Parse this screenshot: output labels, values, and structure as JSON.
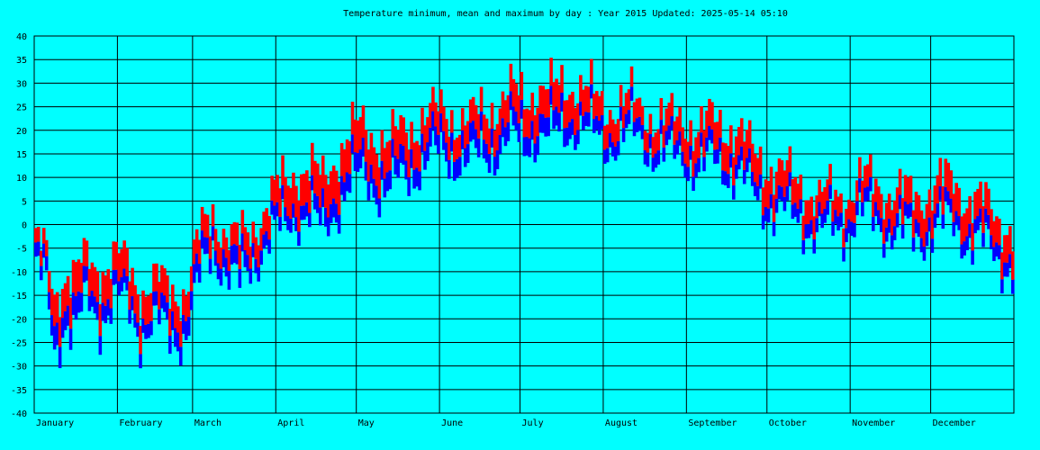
{
  "chart_data": {
    "type": "bar",
    "title": "Temperature minimum, mean and maximum by day : Year 2015   Updated: 2025-05-14 05:10",
    "xlabel": "",
    "ylabel": "",
    "ylim": [
      -40,
      40
    ],
    "yticks": [
      40,
      35,
      30,
      25,
      20,
      15,
      10,
      5,
      0,
      -5,
      -10,
      -15,
      -20,
      -25,
      -30,
      -35,
      -40
    ],
    "months": [
      "January",
      "February",
      "March",
      "April",
      "May",
      "June",
      "July",
      "August",
      "September",
      "October",
      "November",
      "December"
    ],
    "month_days": [
      31,
      28,
      31,
      30,
      31,
      30,
      31,
      31,
      30,
      31,
      30,
      31
    ],
    "grid": true,
    "colors": {
      "background": "#00FFFF",
      "grid": "#000000",
      "min_to_mean": "#0000FF",
      "mean_to_max": "#FF0000"
    },
    "series": [
      {
        "name": "minimum",
        "anchors": [
          [
            1,
            -9
          ],
          [
            5,
            -14
          ],
          [
            8,
            -27
          ],
          [
            12,
            -20
          ],
          [
            16,
            -23
          ],
          [
            20,
            -16
          ],
          [
            25,
            -20
          ],
          [
            31,
            -16
          ],
          [
            36,
            -18
          ],
          [
            40,
            -23
          ],
          [
            46,
            -21
          ],
          [
            52,
            -24
          ],
          [
            57,
            -23
          ],
          [
            62,
            -12
          ],
          [
            67,
            -5
          ],
          [
            72,
            -10
          ],
          [
            77,
            -13
          ],
          [
            82,
            -8
          ],
          [
            88,
            -3
          ],
          [
            93,
            -1
          ],
          [
            98,
            2
          ],
          [
            103,
            2
          ],
          [
            108,
            -2
          ],
          [
            113,
            4
          ],
          [
            118,
            8
          ],
          [
            123,
            10
          ],
          [
            128,
            8
          ],
          [
            133,
            7
          ],
          [
            138,
            10
          ],
          [
            143,
            12
          ],
          [
            148,
            14
          ],
          [
            153,
            15
          ],
          [
            158,
            14
          ],
          [
            163,
            13
          ],
          [
            168,
            15
          ],
          [
            173,
            16
          ],
          [
            178,
            18
          ],
          [
            183,
            17
          ],
          [
            188,
            19
          ],
          [
            193,
            18
          ],
          [
            198,
            20
          ],
          [
            203,
            21
          ],
          [
            208,
            19
          ],
          [
            213,
            17
          ],
          [
            218,
            18
          ],
          [
            223,
            19
          ],
          [
            228,
            17
          ],
          [
            233,
            15
          ],
          [
            238,
            14
          ],
          [
            243,
            14
          ],
          [
            248,
            12
          ],
          [
            253,
            13
          ],
          [
            258,
            12
          ],
          [
            263,
            11
          ],
          [
            268,
            6
          ],
          [
            273,
            4
          ],
          [
            278,
            3
          ],
          [
            283,
            1
          ],
          [
            288,
            0
          ],
          [
            293,
            -2
          ],
          [
            298,
            -1
          ],
          [
            303,
            -1
          ],
          [
            308,
            2
          ],
          [
            313,
            1
          ],
          [
            318,
            -1
          ],
          [
            323,
            -2
          ],
          [
            328,
            -3
          ],
          [
            333,
            -2
          ],
          [
            338,
            0
          ],
          [
            343,
            0
          ],
          [
            348,
            -3
          ],
          [
            353,
            -4
          ],
          [
            358,
            -6
          ],
          [
            365,
            -10
          ]
        ]
      },
      {
        "name": "mean",
        "anchors": [
          [
            1,
            -6
          ],
          [
            5,
            -11
          ],
          [
            8,
            -22
          ],
          [
            12,
            -16
          ],
          [
            16,
            -18
          ],
          [
            20,
            -13
          ],
          [
            25,
            -16
          ],
          [
            31,
            -13
          ],
          [
            36,
            -15
          ],
          [
            40,
            -20
          ],
          [
            46,
            -18
          ],
          [
            52,
            -20
          ],
          [
            57,
            -19
          ],
          [
            62,
            -8
          ],
          [
            67,
            -2
          ],
          [
            72,
            -6
          ],
          [
            77,
            -9
          ],
          [
            82,
            -5
          ],
          [
            88,
            0
          ],
          [
            93,
            2
          ],
          [
            98,
            5
          ],
          [
            103,
            5
          ],
          [
            108,
            2
          ],
          [
            113,
            8
          ],
          [
            118,
            12
          ],
          [
            123,
            14
          ],
          [
            128,
            12
          ],
          [
            133,
            11
          ],
          [
            138,
            14
          ],
          [
            143,
            16
          ],
          [
            148,
            18
          ],
          [
            153,
            19
          ],
          [
            158,
            18
          ],
          [
            163,
            17
          ],
          [
            168,
            19
          ],
          [
            173,
            20
          ],
          [
            178,
            22
          ],
          [
            183,
            21
          ],
          [
            188,
            23
          ],
          [
            193,
            22
          ],
          [
            198,
            24
          ],
          [
            203,
            24
          ],
          [
            208,
            22
          ],
          [
            213,
            20
          ],
          [
            218,
            21
          ],
          [
            223,
            22
          ],
          [
            228,
            20
          ],
          [
            233,
            18
          ],
          [
            238,
            17
          ],
          [
            243,
            17
          ],
          [
            248,
            15
          ],
          [
            253,
            16
          ],
          [
            258,
            15
          ],
          [
            263,
            14
          ],
          [
            268,
            9
          ],
          [
            273,
            7
          ],
          [
            278,
            6
          ],
          [
            283,
            4
          ],
          [
            288,
            3
          ],
          [
            293,
            1
          ],
          [
            298,
            2
          ],
          [
            303,
            2
          ],
          [
            308,
            5
          ],
          [
            313,
            4
          ],
          [
            318,
            2
          ],
          [
            323,
            1
          ],
          [
            328,
            0
          ],
          [
            333,
            1
          ],
          [
            338,
            3
          ],
          [
            343,
            3
          ],
          [
            348,
            0
          ],
          [
            353,
            -1
          ],
          [
            358,
            -3
          ],
          [
            365,
            -7
          ]
        ]
      },
      {
        "name": "maximum",
        "anchors": [
          [
            1,
            -3
          ],
          [
            5,
            -8
          ],
          [
            8,
            -16
          ],
          [
            12,
            -11
          ],
          [
            16,
            -12
          ],
          [
            20,
            -9
          ],
          [
            25,
            -11
          ],
          [
            31,
            -9
          ],
          [
            36,
            -11
          ],
          [
            40,
            -16
          ],
          [
            46,
            -14
          ],
          [
            52,
            -16
          ],
          [
            57,
            -15
          ],
          [
            62,
            -4
          ],
          [
            67,
            2
          ],
          [
            72,
            -2
          ],
          [
            77,
            -4
          ],
          [
            82,
            -1
          ],
          [
            88,
            4
          ],
          [
            93,
            7
          ],
          [
            98,
            10
          ],
          [
            103,
            10
          ],
          [
            108,
            7
          ],
          [
            113,
            13
          ],
          [
            118,
            17
          ],
          [
            123,
            19
          ],
          [
            128,
            17
          ],
          [
            133,
            16
          ],
          [
            138,
            19
          ],
          [
            143,
            21
          ],
          [
            148,
            23
          ],
          [
            153,
            24
          ],
          [
            158,
            22
          ],
          [
            163,
            21
          ],
          [
            168,
            23
          ],
          [
            173,
            24
          ],
          [
            178,
            26
          ],
          [
            183,
            25
          ],
          [
            188,
            27
          ],
          [
            193,
            26
          ],
          [
            198,
            28
          ],
          [
            203,
            28
          ],
          [
            208,
            26
          ],
          [
            213,
            24
          ],
          [
            218,
            25
          ],
          [
            223,
            26
          ],
          [
            228,
            24
          ],
          [
            233,
            22
          ],
          [
            238,
            21
          ],
          [
            243,
            21
          ],
          [
            248,
            19
          ],
          [
            253,
            20
          ],
          [
            258,
            19
          ],
          [
            263,
            18
          ],
          [
            268,
            13
          ],
          [
            273,
            11
          ],
          [
            278,
            10
          ],
          [
            283,
            8
          ],
          [
            288,
            7
          ],
          [
            293,
            5
          ],
          [
            298,
            6
          ],
          [
            303,
            6
          ],
          [
            308,
            9
          ],
          [
            313,
            8
          ],
          [
            318,
            6
          ],
          [
            323,
            5
          ],
          [
            328,
            4
          ],
          [
            333,
            5
          ],
          [
            338,
            7
          ],
          [
            343,
            7
          ],
          [
            348,
            4
          ],
          [
            353,
            3
          ],
          [
            358,
            1
          ],
          [
            365,
            -2
          ]
        ]
      }
    ]
  }
}
